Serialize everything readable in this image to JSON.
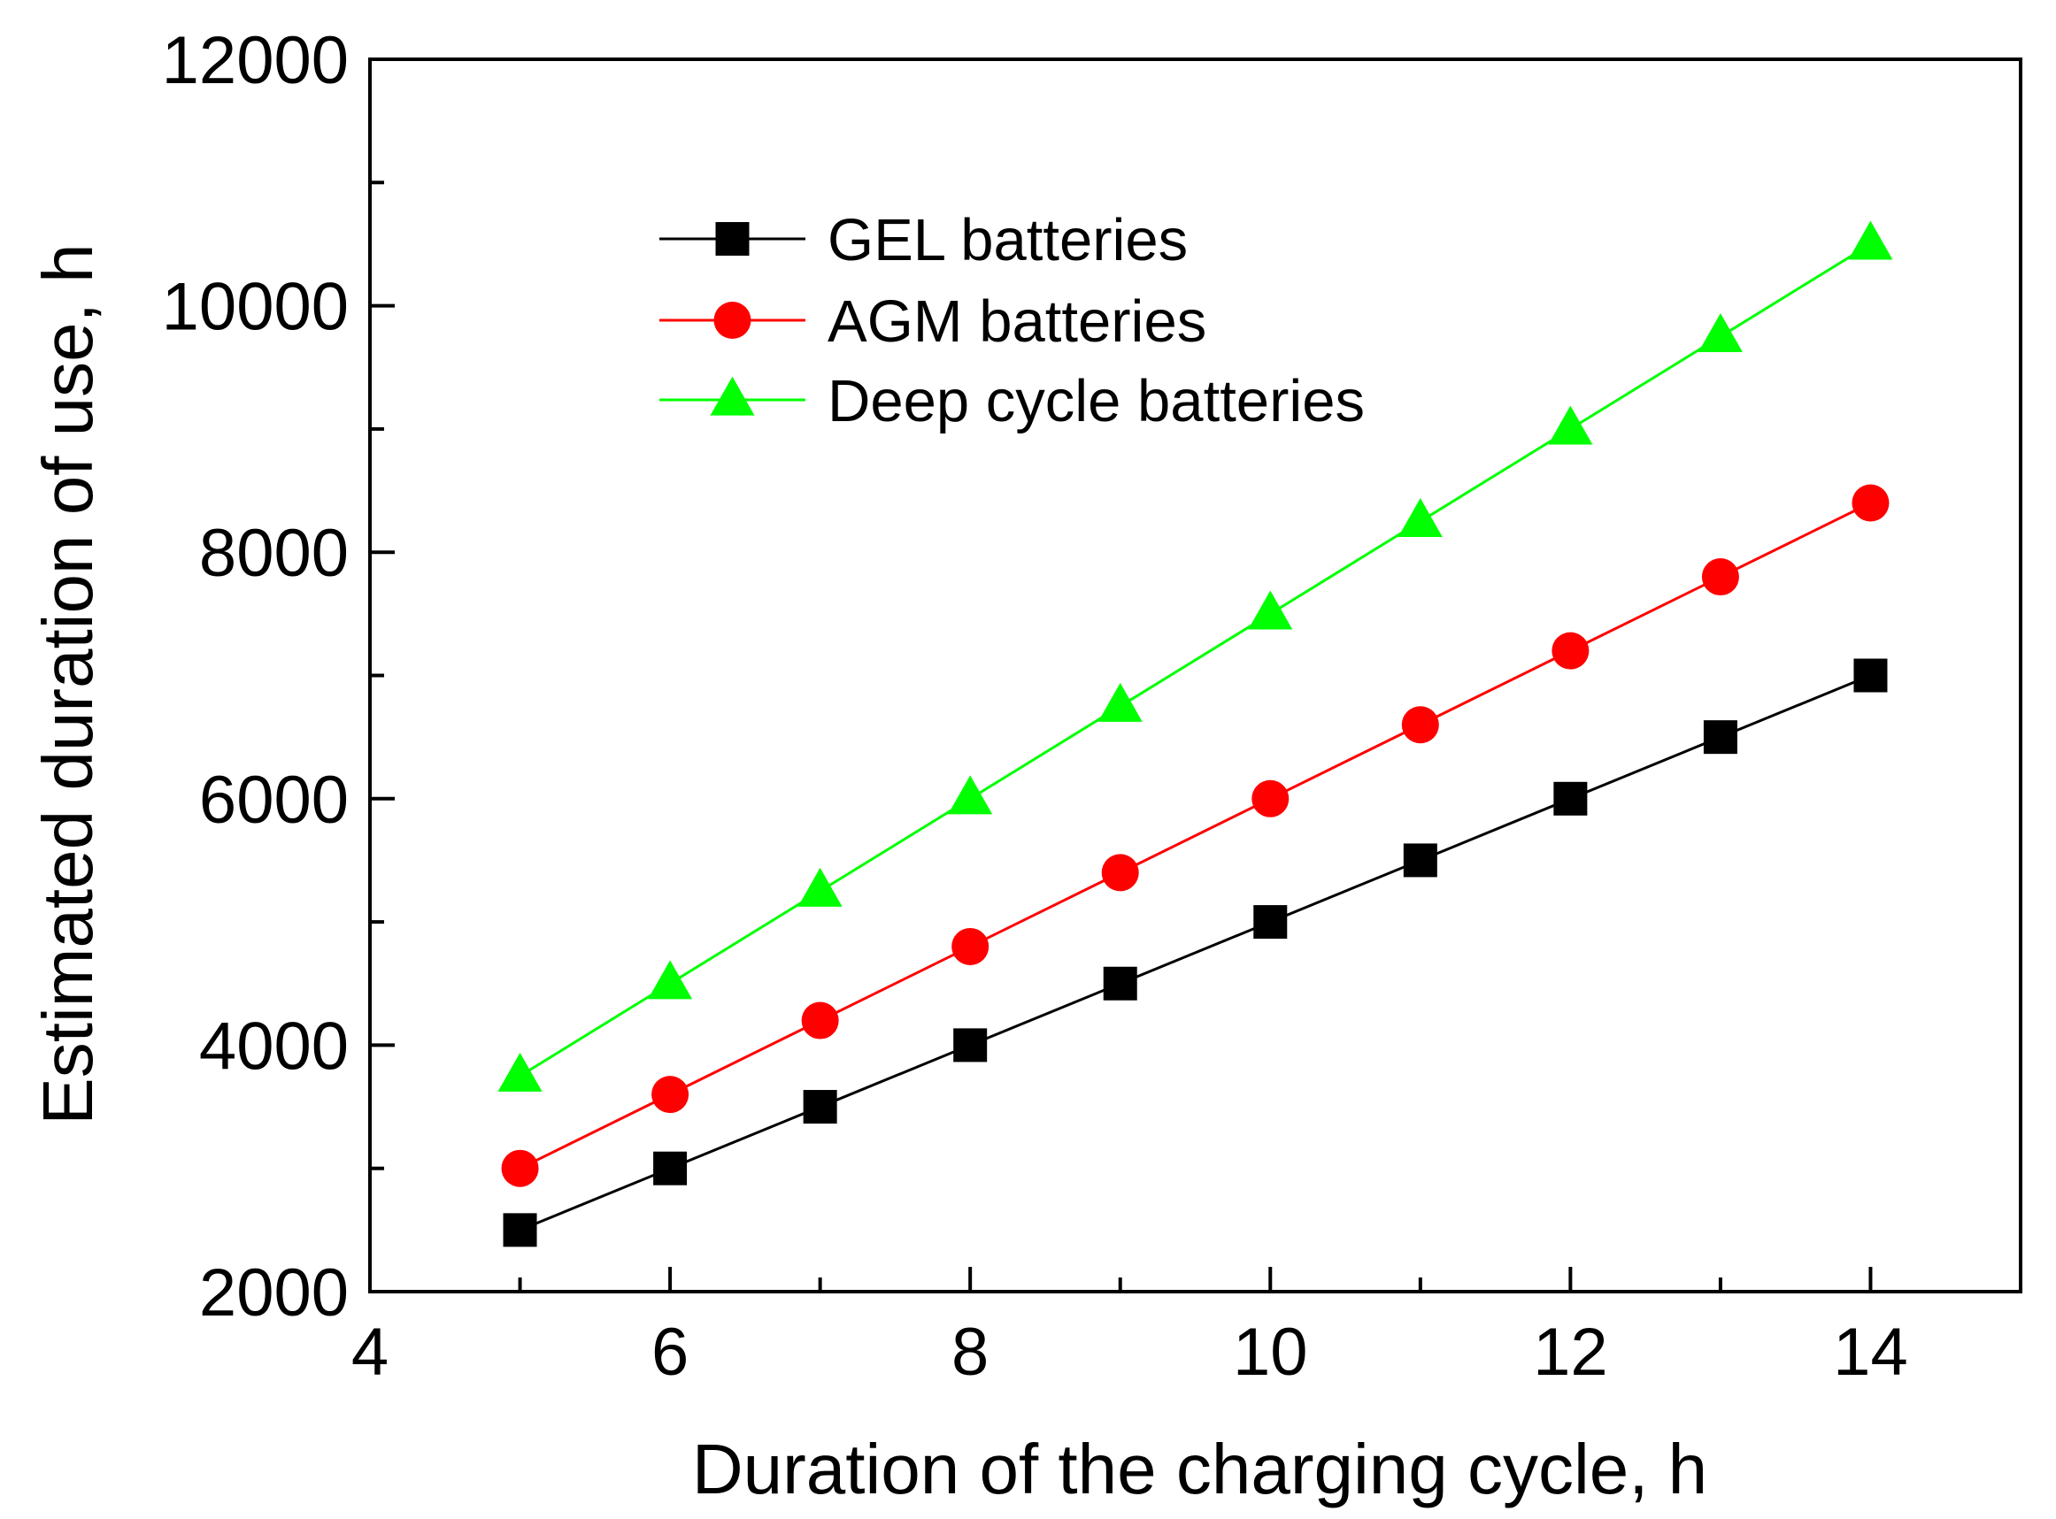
{
  "chart_data": {
    "type": "line",
    "title": "",
    "xlabel": "Duration of the charging cycle, h",
    "ylabel": "Estimated duration of use, h",
    "xlim": [
      4,
      15
    ],
    "ylim": [
      2000,
      12000
    ],
    "x_ticks": [
      4,
      6,
      8,
      10,
      12,
      14
    ],
    "y_ticks": [
      2000,
      4000,
      6000,
      8000,
      10000,
      12000
    ],
    "x_tick_labels": [
      "4",
      "6",
      "8",
      "10",
      "12",
      "14"
    ],
    "y_tick_labels": [
      "2000",
      "4000",
      "6000",
      "8000",
      "10000",
      "12000"
    ],
    "x_minor_ticks": [
      5,
      7,
      9,
      11,
      13,
      15
    ],
    "y_minor_ticks": [
      3000,
      5000,
      7000,
      9000,
      11000
    ],
    "grid": false,
    "legend": {
      "position": "top-left",
      "frame": false
    },
    "series": [
      {
        "name": "GEL batteries",
        "color": "#000000",
        "marker": "square",
        "x": [
          5,
          6,
          7,
          8,
          9,
          10,
          11,
          12,
          13,
          14
        ],
        "y": [
          2500,
          3000,
          3500,
          4000,
          4500,
          5000,
          5500,
          6000,
          6500,
          7000
        ]
      },
      {
        "name": "AGM batteries",
        "color": "#ff0000",
        "marker": "circle",
        "x": [
          5,
          6,
          7,
          8,
          9,
          10,
          11,
          12,
          13,
          14
        ],
        "y": [
          3000,
          3600,
          4200,
          4800,
          5400,
          6000,
          6600,
          7200,
          7800,
          8400
        ]
      },
      {
        "name": "Deep cycle batteries",
        "color": "#00ff00",
        "marker": "triangle",
        "x": [
          5,
          6,
          7,
          8,
          9,
          10,
          11,
          12,
          13,
          14
        ],
        "y": [
          3750,
          4500,
          5250,
          6000,
          6750,
          7500,
          8250,
          9000,
          9750,
          10500
        ]
      }
    ]
  }
}
